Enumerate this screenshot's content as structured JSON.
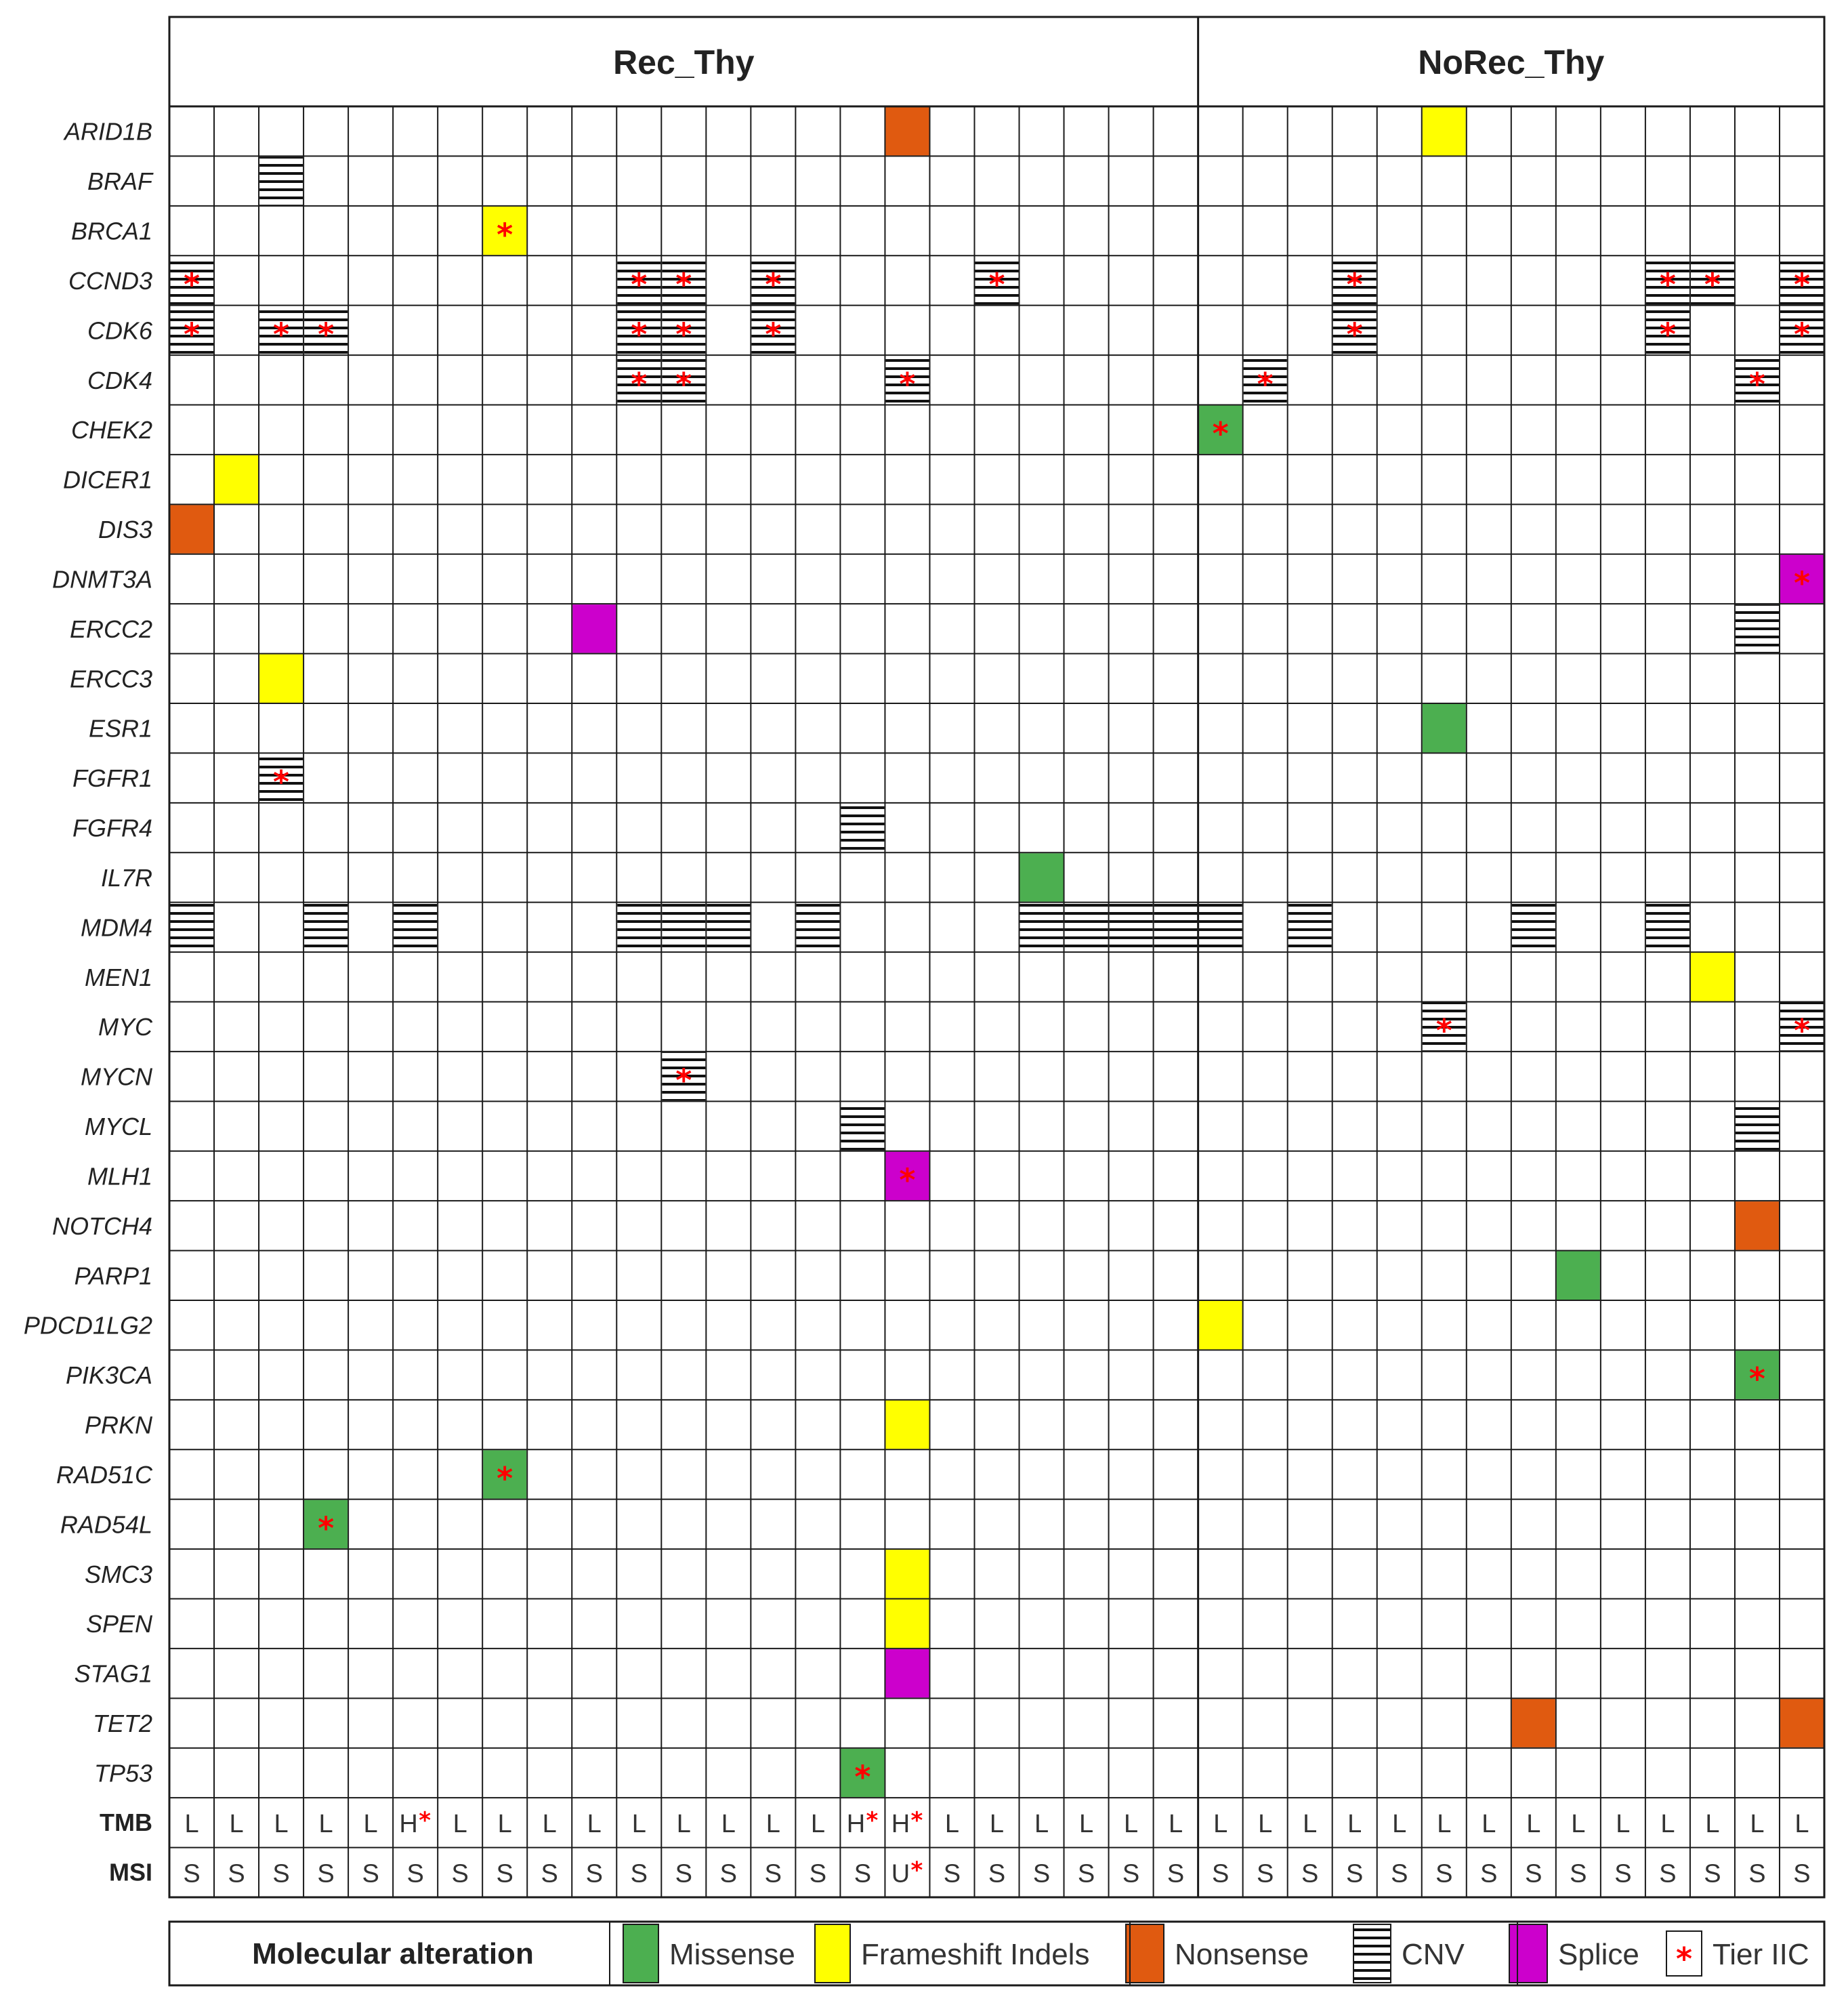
{
  "chart_data": {
    "type": "table",
    "groups": [
      {
        "name": "Rec_Thy",
        "samples": 23
      },
      {
        "name": "NoRec_Thy",
        "samples": 14
      }
    ],
    "genes": [
      "ARID1B",
      "BRAF",
      "BRCA1",
      "CCND3",
      "CDK6",
      "CDK4",
      "CHEK2",
      "DICER1",
      "DIS3",
      "DNMT3A",
      "ERCC2",
      "ERCC3",
      "ESR1",
      "FGFR1",
      "FGFR4",
      "IL7R",
      "MDM4",
      "MEN1",
      "MYC",
      "MYCN",
      "MYCL",
      "MLH1",
      "NOTCH4",
      "PARP1",
      "PDCD1LG2",
      "PIK3CA",
      "PRKN",
      "RAD51C",
      "RAD54L",
      "SMC3",
      "SPEN",
      "STAG1",
      "TET2",
      "TP53"
    ],
    "alterations": [
      {
        "gene": "ARID1B",
        "sample": 17,
        "type": "Nonsense",
        "tier": false
      },
      {
        "gene": "ARID1B",
        "sample": 29,
        "type": "Frameshift Indels",
        "tier": false
      },
      {
        "gene": "BRAF",
        "sample": 3,
        "type": "CNV",
        "tier": false
      },
      {
        "gene": "BRCA1",
        "sample": 8,
        "type": "Frameshift Indels",
        "tier": true
      },
      {
        "gene": "CCND3",
        "sample": 1,
        "type": "CNV",
        "tier": true
      },
      {
        "gene": "CCND3",
        "sample": 11,
        "type": "CNV",
        "tier": true
      },
      {
        "gene": "CCND3",
        "sample": 12,
        "type": "CNV",
        "tier": true
      },
      {
        "gene": "CCND3",
        "sample": 14,
        "type": "CNV",
        "tier": true
      },
      {
        "gene": "CCND3",
        "sample": 19,
        "type": "CNV",
        "tier": true
      },
      {
        "gene": "CCND3",
        "sample": 27,
        "type": "CNV",
        "tier": true
      },
      {
        "gene": "CCND3",
        "sample": 34,
        "type": "CNV",
        "tier": true
      },
      {
        "gene": "CCND3",
        "sample": 35,
        "type": "CNV",
        "tier": true
      },
      {
        "gene": "CCND3",
        "sample": 37,
        "type": "CNV",
        "tier": true
      },
      {
        "gene": "CDK6",
        "sample": 1,
        "type": "CNV",
        "tier": true
      },
      {
        "gene": "CDK6",
        "sample": 3,
        "type": "CNV",
        "tier": true
      },
      {
        "gene": "CDK6",
        "sample": 4,
        "type": "CNV",
        "tier": true
      },
      {
        "gene": "CDK6",
        "sample": 11,
        "type": "CNV",
        "tier": true
      },
      {
        "gene": "CDK6",
        "sample": 12,
        "type": "CNV",
        "tier": true
      },
      {
        "gene": "CDK6",
        "sample": 14,
        "type": "CNV",
        "tier": true
      },
      {
        "gene": "CDK6",
        "sample": 27,
        "type": "CNV",
        "tier": true
      },
      {
        "gene": "CDK6",
        "sample": 34,
        "type": "CNV",
        "tier": true
      },
      {
        "gene": "CDK6",
        "sample": 37,
        "type": "CNV",
        "tier": true
      },
      {
        "gene": "CDK4",
        "sample": 11,
        "type": "CNV",
        "tier": true
      },
      {
        "gene": "CDK4",
        "sample": 12,
        "type": "CNV",
        "tier": true
      },
      {
        "gene": "CDK4",
        "sample": 17,
        "type": "CNV",
        "tier": true
      },
      {
        "gene": "CDK4",
        "sample": 25,
        "type": "CNV",
        "tier": true
      },
      {
        "gene": "CDK4",
        "sample": 36,
        "type": "CNV",
        "tier": true
      },
      {
        "gene": "CHEK2",
        "sample": 24,
        "type": "Missense",
        "tier": true
      },
      {
        "gene": "DICER1",
        "sample": 2,
        "type": "Frameshift Indels",
        "tier": false
      },
      {
        "gene": "DIS3",
        "sample": 1,
        "type": "Nonsense",
        "tier": false
      },
      {
        "gene": "DNMT3A",
        "sample": 37,
        "type": "Splice",
        "tier": true
      },
      {
        "gene": "ERCC2",
        "sample": 10,
        "type": "Splice",
        "tier": false
      },
      {
        "gene": "ERCC2",
        "sample": 36,
        "type": "CNV",
        "tier": false
      },
      {
        "gene": "ERCC3",
        "sample": 3,
        "type": "Frameshift Indels",
        "tier": false
      },
      {
        "gene": "ESR1",
        "sample": 29,
        "type": "Missense",
        "tier": false
      },
      {
        "gene": "FGFR1",
        "sample": 3,
        "type": "CNV",
        "tier": true
      },
      {
        "gene": "FGFR4",
        "sample": 16,
        "type": "CNV",
        "tier": false
      },
      {
        "gene": "IL7R",
        "sample": 20,
        "type": "Missense",
        "tier": false
      },
      {
        "gene": "MDM4",
        "sample": 1,
        "type": "CNV",
        "tier": false
      },
      {
        "gene": "MDM4",
        "sample": 4,
        "type": "CNV",
        "tier": false
      },
      {
        "gene": "MDM4",
        "sample": 6,
        "type": "CNV",
        "tier": false
      },
      {
        "gene": "MDM4",
        "sample": 11,
        "type": "CNV",
        "tier": false
      },
      {
        "gene": "MDM4",
        "sample": 12,
        "type": "CNV",
        "tier": false
      },
      {
        "gene": "MDM4",
        "sample": 13,
        "type": "CNV",
        "tier": false
      },
      {
        "gene": "MDM4",
        "sample": 15,
        "type": "CNV",
        "tier": false
      },
      {
        "gene": "MDM4",
        "sample": 20,
        "type": "CNV",
        "tier": false
      },
      {
        "gene": "MDM4",
        "sample": 21,
        "type": "CNV",
        "tier": false
      },
      {
        "gene": "MDM4",
        "sample": 22,
        "type": "CNV",
        "tier": false
      },
      {
        "gene": "MDM4",
        "sample": 23,
        "type": "CNV",
        "tier": false
      },
      {
        "gene": "MDM4",
        "sample": 24,
        "type": "CNV",
        "tier": false
      },
      {
        "gene": "MDM4",
        "sample": 26,
        "type": "CNV",
        "tier": false
      },
      {
        "gene": "MDM4",
        "sample": 31,
        "type": "CNV",
        "tier": false
      },
      {
        "gene": "MDM4",
        "sample": 34,
        "type": "CNV",
        "tier": false
      },
      {
        "gene": "MEN1",
        "sample": 35,
        "type": "Frameshift Indels",
        "tier": false
      },
      {
        "gene": "MYC",
        "sample": 29,
        "type": "CNV",
        "tier": true
      },
      {
        "gene": "MYC",
        "sample": 37,
        "type": "CNV",
        "tier": true
      },
      {
        "gene": "MYCN",
        "sample": 12,
        "type": "CNV",
        "tier": true
      },
      {
        "gene": "MYCL",
        "sample": 16,
        "type": "CNV",
        "tier": false
      },
      {
        "gene": "MYCL",
        "sample": 36,
        "type": "CNV",
        "tier": false
      },
      {
        "gene": "MLH1",
        "sample": 17,
        "type": "Splice",
        "tier": true
      },
      {
        "gene": "NOTCH4",
        "sample": 36,
        "type": "Nonsense",
        "tier": false
      },
      {
        "gene": "PARP1",
        "sample": 32,
        "type": "Missense",
        "tier": false
      },
      {
        "gene": "PDCD1LG2",
        "sample": 24,
        "type": "Frameshift Indels",
        "tier": false
      },
      {
        "gene": "PIK3CA",
        "sample": 36,
        "type": "Missense",
        "tier": true
      },
      {
        "gene": "PRKN",
        "sample": 17,
        "type": "Frameshift Indels",
        "tier": false
      },
      {
        "gene": "RAD51C",
        "sample": 8,
        "type": "Missense",
        "tier": true
      },
      {
        "gene": "RAD54L",
        "sample": 4,
        "type": "Missense",
        "tier": true
      },
      {
        "gene": "SMC3",
        "sample": 17,
        "type": "Frameshift Indels",
        "tier": false
      },
      {
        "gene": "SPEN",
        "sample": 17,
        "type": "Frameshift Indels",
        "tier": false
      },
      {
        "gene": "STAG1",
        "sample": 17,
        "type": "Splice",
        "tier": false
      },
      {
        "gene": "TET2",
        "sample": 31,
        "type": "Nonsense",
        "tier": false
      },
      {
        "gene": "TET2",
        "sample": 37,
        "type": "Nonsense",
        "tier": false
      },
      {
        "gene": "TP53",
        "sample": 16,
        "type": "Missense",
        "tier": true
      }
    ],
    "tmb": {
      "label": "TMB",
      "values": [
        "L",
        "L",
        "L",
        "L",
        "L",
        "H",
        "L",
        "L",
        "L",
        "L",
        "L",
        "L",
        "L",
        "L",
        "L",
        "H",
        "H",
        "L",
        "L",
        "L",
        "L",
        "L",
        "L",
        "L",
        "L",
        "L",
        "L",
        "L",
        "L",
        "L",
        "L",
        "L",
        "L",
        "L",
        "L",
        "L",
        "L"
      ],
      "tier": [
        6,
        16,
        17
      ]
    },
    "msi": {
      "label": "MSI",
      "values": [
        "S",
        "S",
        "S",
        "S",
        "S",
        "S",
        "S",
        "S",
        "S",
        "S",
        "S",
        "S",
        "S",
        "S",
        "S",
        "S",
        "U",
        "S",
        "S",
        "S",
        "S",
        "S",
        "S",
        "S",
        "S",
        "S",
        "S",
        "S",
        "S",
        "S",
        "S",
        "S",
        "S",
        "S",
        "S",
        "S",
        "S"
      ],
      "tier": [
        17
      ]
    },
    "legend": {
      "title": "Molecular alteration",
      "items": [
        {
          "label": "Missense",
          "type": "Missense"
        },
        {
          "label": "Frameshift Indels",
          "type": "Frameshift Indels"
        },
        {
          "label": "Nonsense",
          "type": "Nonsense"
        },
        {
          "label": "CNV",
          "type": "CNV"
        },
        {
          "label": "Splice",
          "type": "Splice"
        },
        {
          "label": "Tier IIC",
          "type": "Tier"
        }
      ]
    },
    "colors": {
      "Missense": "#4caf50",
      "Frameshift Indels": "#ffff00",
      "Nonsense": "#e05a10",
      "Splice": "#cc00cc",
      "Tier": "#ff0000",
      "grid": "#1a1a1a"
    }
  }
}
